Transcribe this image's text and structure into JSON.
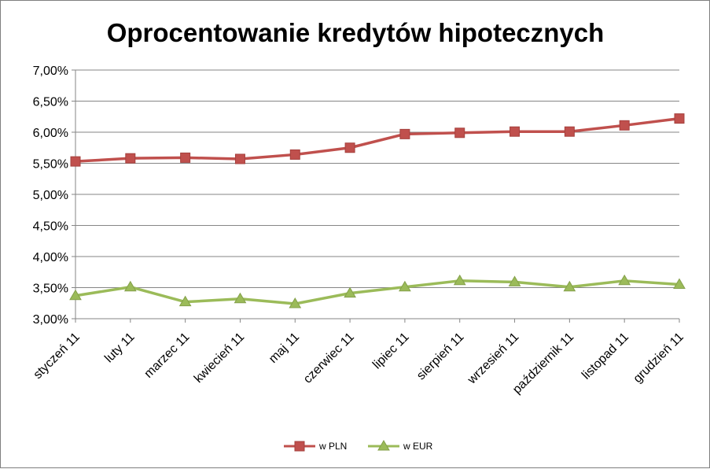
{
  "chart_data": {
    "type": "line",
    "title": "Oprocentowanie kredytów hipotecznych",
    "xlabel": "",
    "ylabel": "",
    "categories": [
      "styczeń 11",
      "luty 11",
      "marzec 11",
      "kwiecień 11",
      "maj 11",
      "czerwiec 11",
      "lipiec 11",
      "sierpień 11",
      "wrzesień 11",
      "październik 11",
      "listopad 11",
      "grudzień 11"
    ],
    "ylim": [
      3.0,
      7.0
    ],
    "yticks": [
      "3,00%",
      "3,50%",
      "4,00%",
      "4,50%",
      "5,00%",
      "5,50%",
      "6,00%",
      "6,50%",
      "7,00%"
    ],
    "grid": true,
    "legend_position": "bottom",
    "series": [
      {
        "name": "w PLN",
        "color": "#c0504d",
        "marker": "square",
        "values": [
          5.53,
          5.58,
          5.59,
          5.57,
          5.64,
          5.75,
          5.97,
          5.99,
          6.01,
          6.01,
          6.11,
          6.22
        ]
      },
      {
        "name": "w EUR",
        "color": "#9bbb59",
        "marker": "triangle",
        "values": [
          3.37,
          3.51,
          3.27,
          3.32,
          3.24,
          3.41,
          3.51,
          3.61,
          3.59,
          3.51,
          3.61,
          3.55
        ]
      }
    ]
  }
}
